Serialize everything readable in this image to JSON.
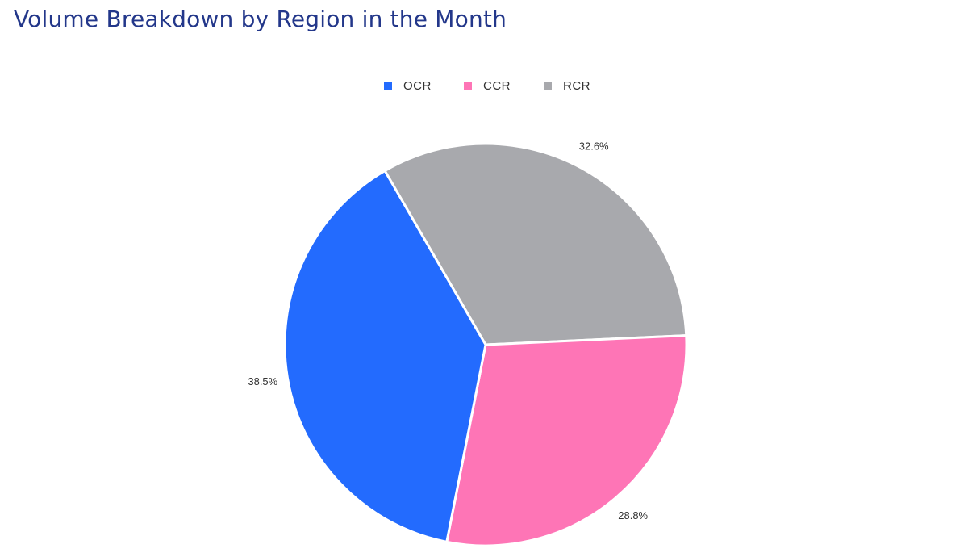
{
  "title": "Volume Breakdown by Region in the Month",
  "chart_data": {
    "type": "pie",
    "title": "Volume Breakdown by Region in the Month",
    "legend_position": "top",
    "slices": [
      {
        "name": "OCR",
        "value": 38.5,
        "label": "38.5%",
        "color": "#236bfe"
      },
      {
        "name": "CCR",
        "value": 28.8,
        "label": "28.8%",
        "color": "#fe75b6"
      },
      {
        "name": "RCR",
        "value": 32.6,
        "label": "32.6%",
        "color": "#a8a9ad"
      }
    ]
  }
}
